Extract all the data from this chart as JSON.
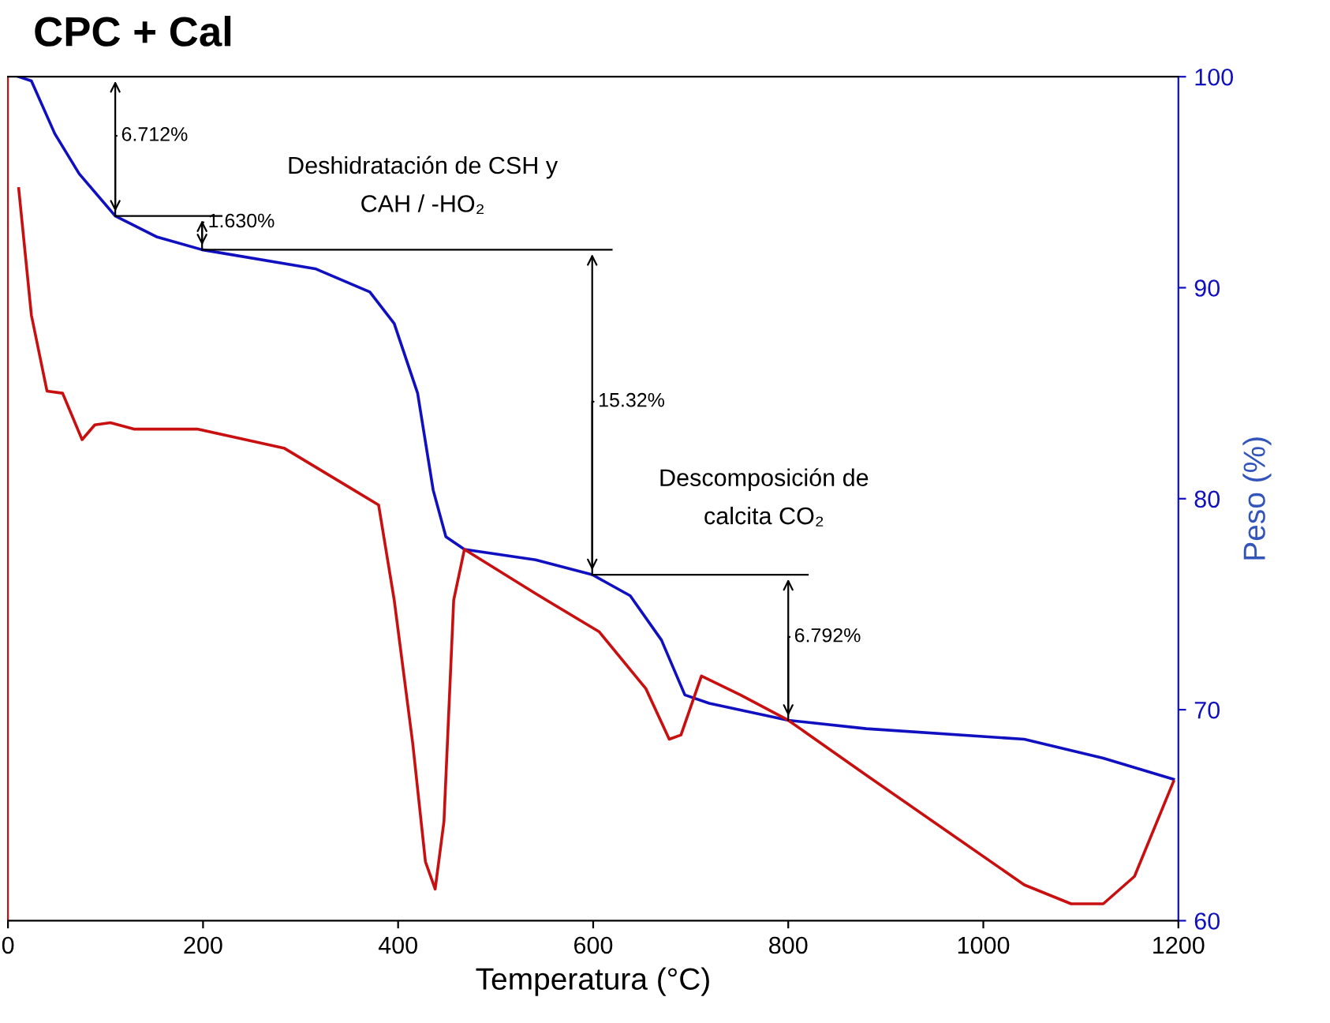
{
  "chart_data": {
    "type": "line",
    "title": "CPC + Cal",
    "xlabel": "Temperatura (°C)",
    "ylabel": "Peso (%)",
    "xlim": [
      0,
      1200
    ],
    "xticks": [
      0,
      200,
      400,
      600,
      800,
      1000,
      1200
    ],
    "ylim": [
      60,
      100
    ],
    "yticks": [
      60,
      70,
      80,
      90,
      100
    ],
    "grid": false,
    "series": [
      {
        "color": "#1010c0",
        "x": [
          11,
          24,
          48,
          73,
          110,
          153,
          199,
          315,
          371,
          396,
          420,
          436,
          449,
          468,
          541,
          599,
          638,
          670,
          694,
          719,
          800,
          880,
          1042,
          1123,
          1195
        ],
        "values": [
          100,
          99.8,
          97.3,
          95.4,
          93.4,
          92.4,
          91.8,
          90.9,
          89.8,
          88.3,
          85,
          80.4,
          78.2,
          77.6,
          77.1,
          76.4,
          75.4,
          73.3,
          70.7,
          70.3,
          69.5,
          69.1,
          68.6,
          67.7,
          66.7
        ]
      },
      {
        "color": "#c81010",
        "x": [
          11,
          24,
          40,
          56,
          76,
          89,
          105,
          129,
          194,
          283,
          355,
          380,
          396,
          415,
          428,
          438,
          447,
          457,
          468,
          541,
          606,
          654,
          678,
          690,
          711,
          751,
          800,
          880,
          961,
          1042,
          1090,
          1123,
          1155,
          1195
        ],
        "values": [
          94.7,
          88.7,
          85.1,
          85,
          82.8,
          83.5,
          83.6,
          83.3,
          83.3,
          82.4,
          80.4,
          79.7,
          75.2,
          68.4,
          62.8,
          61.5,
          64.7,
          75.2,
          77.6,
          75.5,
          73.7,
          71,
          68.6,
          68.8,
          71.6,
          70.7,
          69.5,
          66.9,
          64.3,
          61.7,
          60.8,
          60.8,
          62.1,
          66.6
        ]
      }
    ],
    "annotations": [
      {
        "text": "6.712%",
        "x": 110,
        "y": 93.4
      },
      {
        "text": "1.630%",
        "x": 199,
        "y": 91.8
      },
      {
        "text": "15.32%",
        "x": 599,
        "y": 76.4
      },
      {
        "text": "6.792%",
        "x": 800,
        "y": 69.5
      },
      "Deshidratación de CSH y\nCAH / -HO₂",
      "Descomposición de\ncalcita CO₂"
    ]
  }
}
